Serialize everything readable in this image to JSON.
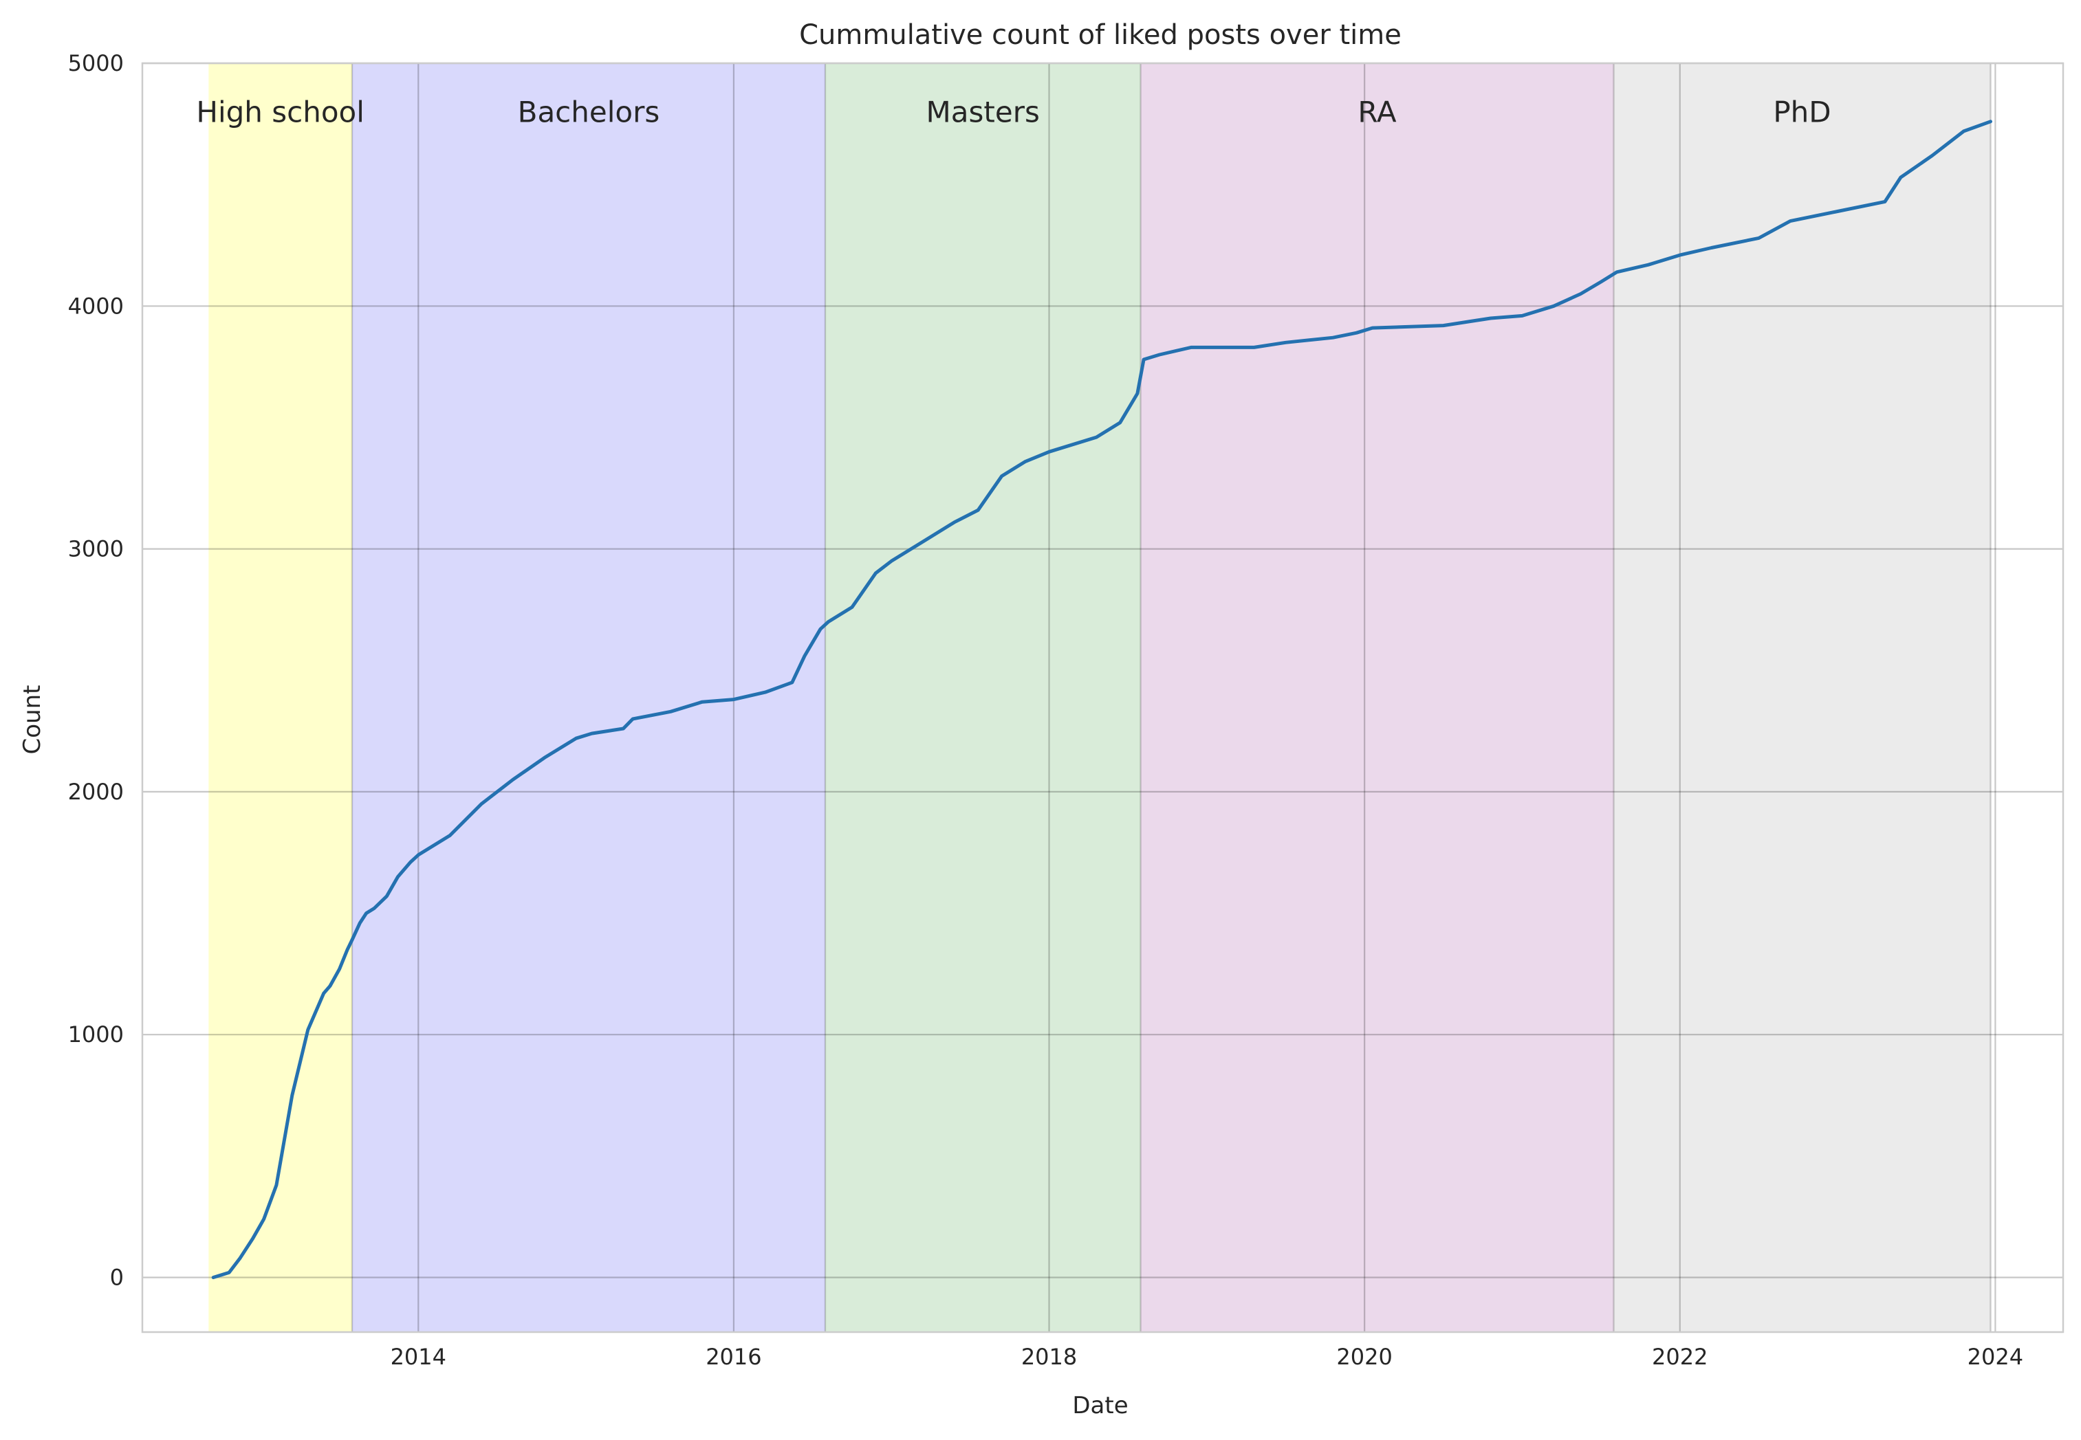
{
  "chart_data": {
    "type": "line",
    "title": "Cummulative count of liked posts over time",
    "xlabel": "Date",
    "ylabel": "Count",
    "xlim": [
      2012.25,
      2024.43
    ],
    "ylim": [
      -225,
      5000
    ],
    "x_ticks": [
      2014,
      2016,
      2018,
      2020,
      2022,
      2024
    ],
    "x_tick_labels": [
      "2014",
      "2016",
      "2018",
      "2020",
      "2022",
      "2024"
    ],
    "y_ticks": [
      0,
      1000,
      2000,
      3000,
      4000,
      5000
    ],
    "y_tick_labels": [
      "0",
      "1000",
      "2000",
      "3000",
      "4000",
      "5000"
    ],
    "grid": true,
    "line_color": "#2471b0",
    "periods": [
      {
        "label": "High school",
        "start": 2012.67,
        "end": 2013.58,
        "color": "#ffffcc"
      },
      {
        "label": "Bachelors",
        "start": 2013.58,
        "end": 2016.58,
        "color": "#d9d9fc"
      },
      {
        "label": "Masters",
        "start": 2016.58,
        "end": 2018.58,
        "color": "#d9ecd9"
      },
      {
        "label": "RA",
        "start": 2018.58,
        "end": 2021.58,
        "color": "#ebd9eb"
      },
      {
        "label": "PhD",
        "start": 2021.58,
        "end": 2023.97,
        "color": "#ebebeb"
      }
    ],
    "series": [
      {
        "x": [
          2012.7,
          2012.8,
          2012.87,
          2012.95,
          2013.02,
          2013.1,
          2013.2,
          2013.3,
          2013.4,
          2013.44,
          2013.5,
          2013.55,
          2013.58,
          2013.63,
          2013.67,
          2013.72,
          2013.8,
          2013.87,
          2013.95,
          2014.0,
          2014.2,
          2014.4,
          2014.6,
          2014.8,
          2015.0,
          2015.1,
          2015.3,
          2015.36,
          2015.6,
          2015.8,
          2016.0,
          2016.2,
          2016.37,
          2016.45,
          2016.55,
          2016.6,
          2016.75,
          2016.9,
          2017.0,
          2017.2,
          2017.4,
          2017.55,
          2017.7,
          2017.85,
          2018.0,
          2018.3,
          2018.45,
          2018.56,
          2018.6,
          2018.7,
          2018.9,
          2019.0,
          2019.3,
          2019.5,
          2019.8,
          2019.95,
          2020.05,
          2020.5,
          2020.7,
          2020.8,
          2021.0,
          2021.2,
          2021.37,
          2021.5,
          2021.6,
          2021.8,
          2022.0,
          2022.2,
          2022.5,
          2022.7,
          2023.0,
          2023.3,
          2023.4,
          2023.6,
          2023.8,
          2023.97
        ],
        "values": [
          0,
          20,
          80,
          160,
          240,
          380,
          750,
          1020,
          1170,
          1200,
          1270,
          1350,
          1390,
          1460,
          1500,
          1520,
          1570,
          1650,
          1710,
          1740,
          1820,
          1950,
          2050,
          2140,
          2220,
          2240,
          2260,
          2300,
          2330,
          2370,
          2380,
          2410,
          2450,
          2560,
          2670,
          2700,
          2760,
          2900,
          2950,
          3030,
          3110,
          3160,
          3300,
          3360,
          3400,
          3460,
          3520,
          3640,
          3780,
          3800,
          3830,
          3830,
          3830,
          3850,
          3870,
          3890,
          3910,
          3920,
          3940,
          3950,
          3960,
          4000,
          4050,
          4100,
          4140,
          4170,
          4210,
          4240,
          4280,
          4350,
          4390,
          4430,
          4530,
          4620,
          4720,
          4760
        ]
      }
    ]
  }
}
